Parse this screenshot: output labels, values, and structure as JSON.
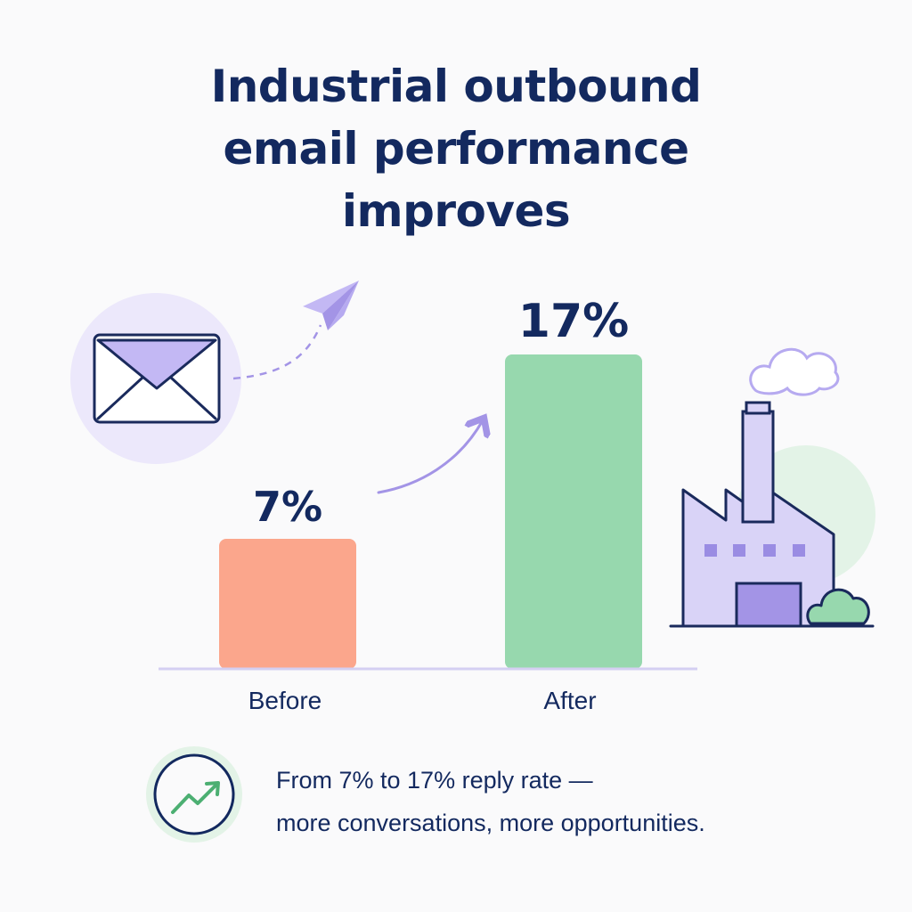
{
  "title_lines": [
    "Industrial outbound",
    "email performance",
    "improves"
  ],
  "chart_data": {
    "type": "bar",
    "categories": [
      "Before",
      "After"
    ],
    "values": [
      7,
      17
    ],
    "value_labels": [
      "7%",
      "17%"
    ],
    "ylim": [
      0,
      17
    ],
    "bar_colors": [
      "#fba68c",
      "#97d8ae"
    ],
    "title": "Industrial outbound email performance improves"
  },
  "caption": {
    "line1": "From 7% to 17% reply rate —",
    "line2": "more conversations, more opportunities."
  },
  "colors": {
    "title": "#13295f",
    "accent_purple": "#a394e6",
    "light_purple": "#d9d3f7",
    "green": "#97d8ae",
    "axis": "#d4cff2"
  },
  "icons": [
    "envelope-icon",
    "paper-plane-icon",
    "factory-icon",
    "trend-up-icon"
  ]
}
